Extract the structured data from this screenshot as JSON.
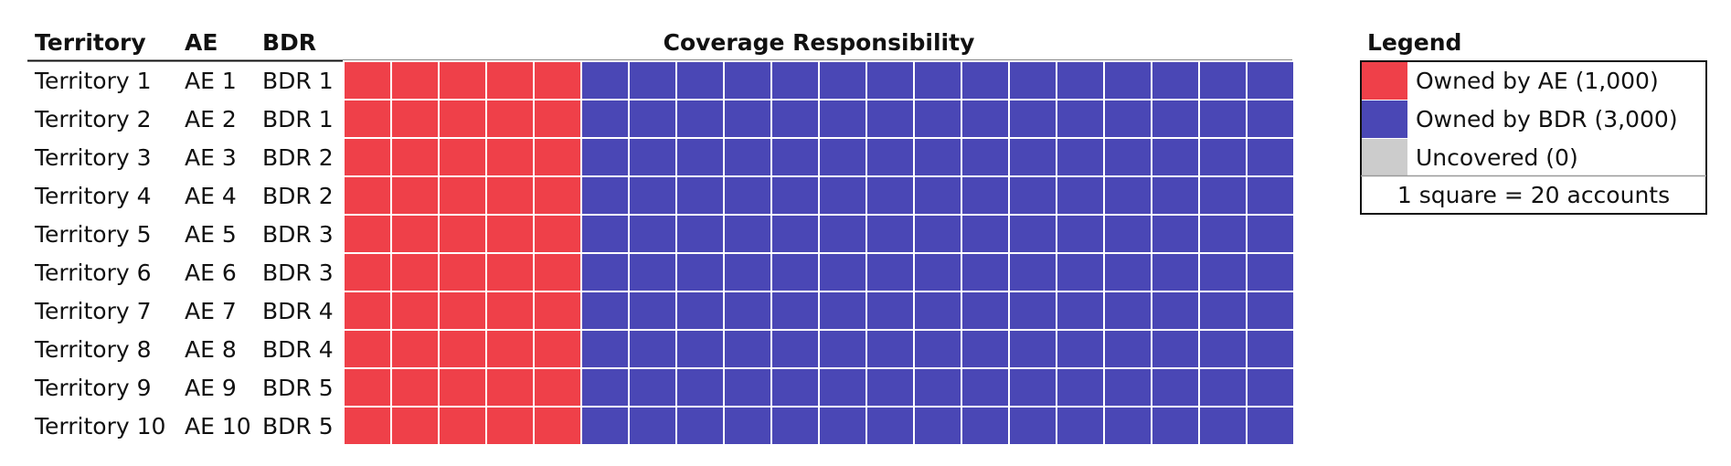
{
  "chart_data": {
    "type": "table",
    "title": "",
    "columns": [
      "Territory",
      "AE",
      "BDR",
      "Coverage Responsibility"
    ],
    "rows": [
      {
        "territory": "Territory 1",
        "ae": "AE 1",
        "bdr": "BDR 1",
        "ae_squares": 5,
        "bdr_squares": 15,
        "uncovered_squares": 0
      },
      {
        "territory": "Territory 2",
        "ae": "AE 2",
        "bdr": "BDR 1",
        "ae_squares": 5,
        "bdr_squares": 15,
        "uncovered_squares": 0
      },
      {
        "territory": "Territory 3",
        "ae": "AE 3",
        "bdr": "BDR 2",
        "ae_squares": 5,
        "bdr_squares": 15,
        "uncovered_squares": 0
      },
      {
        "territory": "Territory 4",
        "ae": "AE 4",
        "bdr": "BDR 2",
        "ae_squares": 5,
        "bdr_squares": 15,
        "uncovered_squares": 0
      },
      {
        "territory": "Territory 5",
        "ae": "AE 5",
        "bdr": "BDR 3",
        "ae_squares": 5,
        "bdr_squares": 15,
        "uncovered_squares": 0
      },
      {
        "territory": "Territory 6",
        "ae": "AE 6",
        "bdr": "BDR 3",
        "ae_squares": 5,
        "bdr_squares": 15,
        "uncovered_squares": 0
      },
      {
        "territory": "Territory 7",
        "ae": "AE 7",
        "bdr": "BDR 4",
        "ae_squares": 5,
        "bdr_squares": 15,
        "uncovered_squares": 0
      },
      {
        "territory": "Territory 8",
        "ae": "AE 8",
        "bdr": "BDR 4",
        "ae_squares": 5,
        "bdr_squares": 15,
        "uncovered_squares": 0
      },
      {
        "territory": "Territory 9",
        "ae": "AE 9",
        "bdr": "BDR 5",
        "ae_squares": 5,
        "bdr_squares": 15,
        "uncovered_squares": 0
      },
      {
        "territory": "Territory 10",
        "ae": "AE 10",
        "bdr": "BDR 5",
        "ae_squares": 5,
        "bdr_squares": 15,
        "uncovered_squares": 0
      }
    ],
    "legend": {
      "title": "Legend",
      "items": [
        {
          "key": "ae",
          "label": "Owned by AE (1,000)",
          "color": "#ef4049"
        },
        {
          "key": "bdr",
          "label": "Owned by BDR (3,000)",
          "color": "#4a47b5"
        },
        {
          "key": "uncovered",
          "label": "Uncovered (0)",
          "color": "#cccccc"
        }
      ],
      "scale_note": "1 square = 20 accounts"
    }
  }
}
